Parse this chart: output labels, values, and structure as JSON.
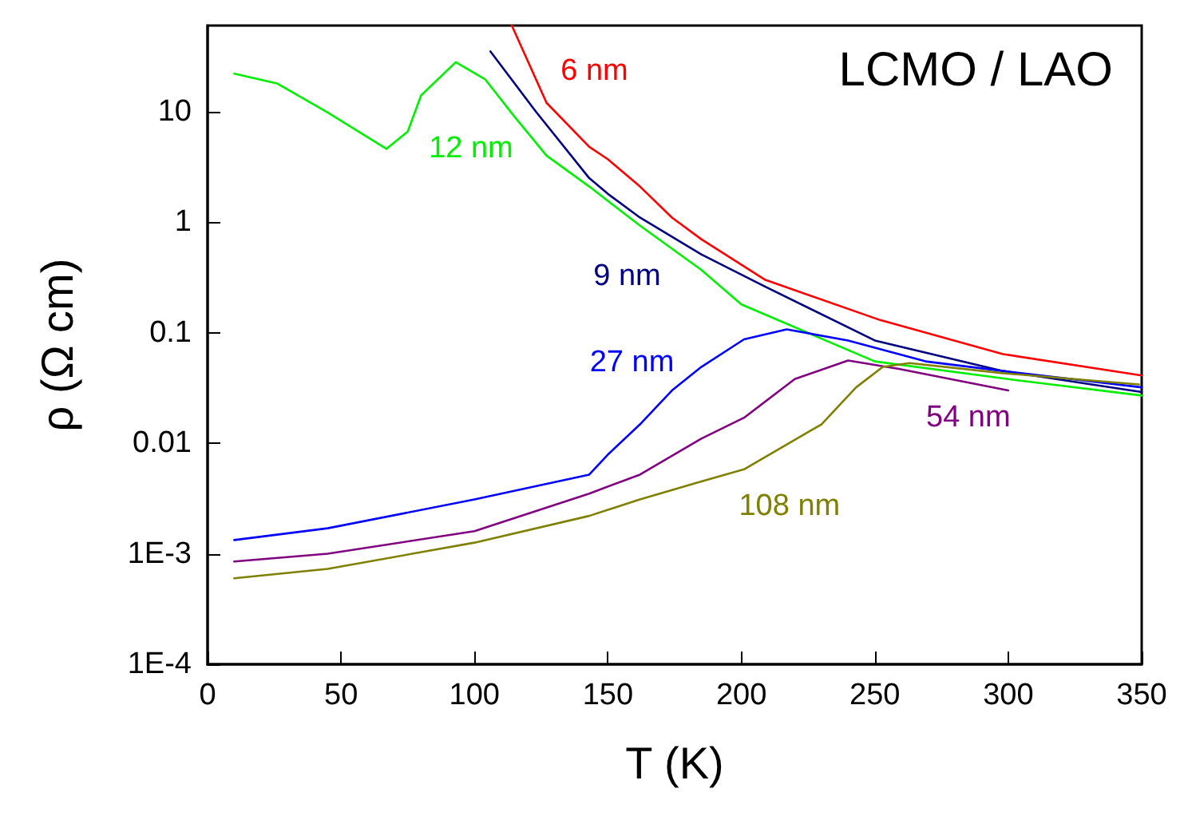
{
  "chart_data": {
    "type": "line",
    "title": "LCMO / LAO",
    "xlabel": "T (K)",
    "ylabel": "ρ (Ω cm)",
    "log": "y",
    "grid": false,
    "legend": false,
    "marker": "none",
    "line_style": "solid",
    "xlim": [
      0,
      350
    ],
    "xticks": [
      0,
      50,
      100,
      150,
      200,
      250,
      300,
      350
    ],
    "ylim": [
      0.0001,
      60
    ],
    "yticks": [
      {
        "value": 0.0001,
        "label": "1E-4"
      },
      {
        "value": 0.001,
        "label": "1E-3"
      },
      0.01,
      0.1,
      1,
      10
    ],
    "series": [
      {
        "name": "6 nm",
        "color": "#ff0000",
        "x": [
          114,
          127,
          143,
          150,
          162,
          174,
          185,
          209,
          252,
          298,
          350
        ],
        "values": [
          60,
          12,
          4.8,
          3.7,
          2.1,
          1.1,
          0.7,
          0.3,
          0.13,
          0.064,
          0.041
        ]
      },
      {
        "name": "9 nm",
        "color": "#000080",
        "x": [
          106,
          123,
          143,
          150,
          162,
          185,
          209,
          250,
          298,
          350
        ],
        "values": [
          35,
          10,
          2.5,
          1.8,
          1.1,
          0.51,
          0.26,
          0.085,
          0.045,
          0.029
        ]
      },
      {
        "name": "12 nm",
        "color": "#00ee00",
        "x": [
          10,
          26,
          45,
          67,
          75,
          80,
          93,
          104,
          115,
          127,
          143,
          162,
          185,
          200,
          250,
          300,
          350
        ],
        "values": [
          22,
          18,
          9.8,
          4.6,
          6.6,
          14,
          28,
          19.6,
          9,
          4,
          2.1,
          0.93,
          0.37,
          0.18,
          0.055,
          0.038,
          0.027
        ]
      },
      {
        "name": "27 nm",
        "color": "#0000ff",
        "x": [
          10,
          45,
          100,
          143,
          150,
          162,
          174,
          185,
          201,
          217,
          240,
          269,
          298,
          350
        ],
        "values": [
          0.00133,
          0.0017,
          0.0031,
          0.0052,
          0.0079,
          0.0148,
          0.03,
          0.049,
          0.087,
          0.107,
          0.085,
          0.055,
          0.045,
          0.032
        ]
      },
      {
        "name": "54 nm",
        "color": "#800080",
        "x": [
          10,
          45,
          100,
          143,
          162,
          185,
          201,
          220,
          240,
          259,
          300
        ],
        "values": [
          0.00085,
          0.001,
          0.0016,
          0.0035,
          0.0052,
          0.011,
          0.017,
          0.038,
          0.056,
          0.047,
          0.03
        ]
      },
      {
        "name": "108 nm",
        "color": "#808000",
        "x": [
          10,
          45,
          100,
          143,
          162,
          185,
          201,
          230,
          243,
          253,
          263,
          298,
          349
        ],
        "values": [
          0.0006,
          0.00073,
          0.00126,
          0.0022,
          0.0031,
          0.0045,
          0.0058,
          0.0148,
          0.032,
          0.049,
          0.053,
          0.043,
          0.034
        ]
      }
    ]
  }
}
